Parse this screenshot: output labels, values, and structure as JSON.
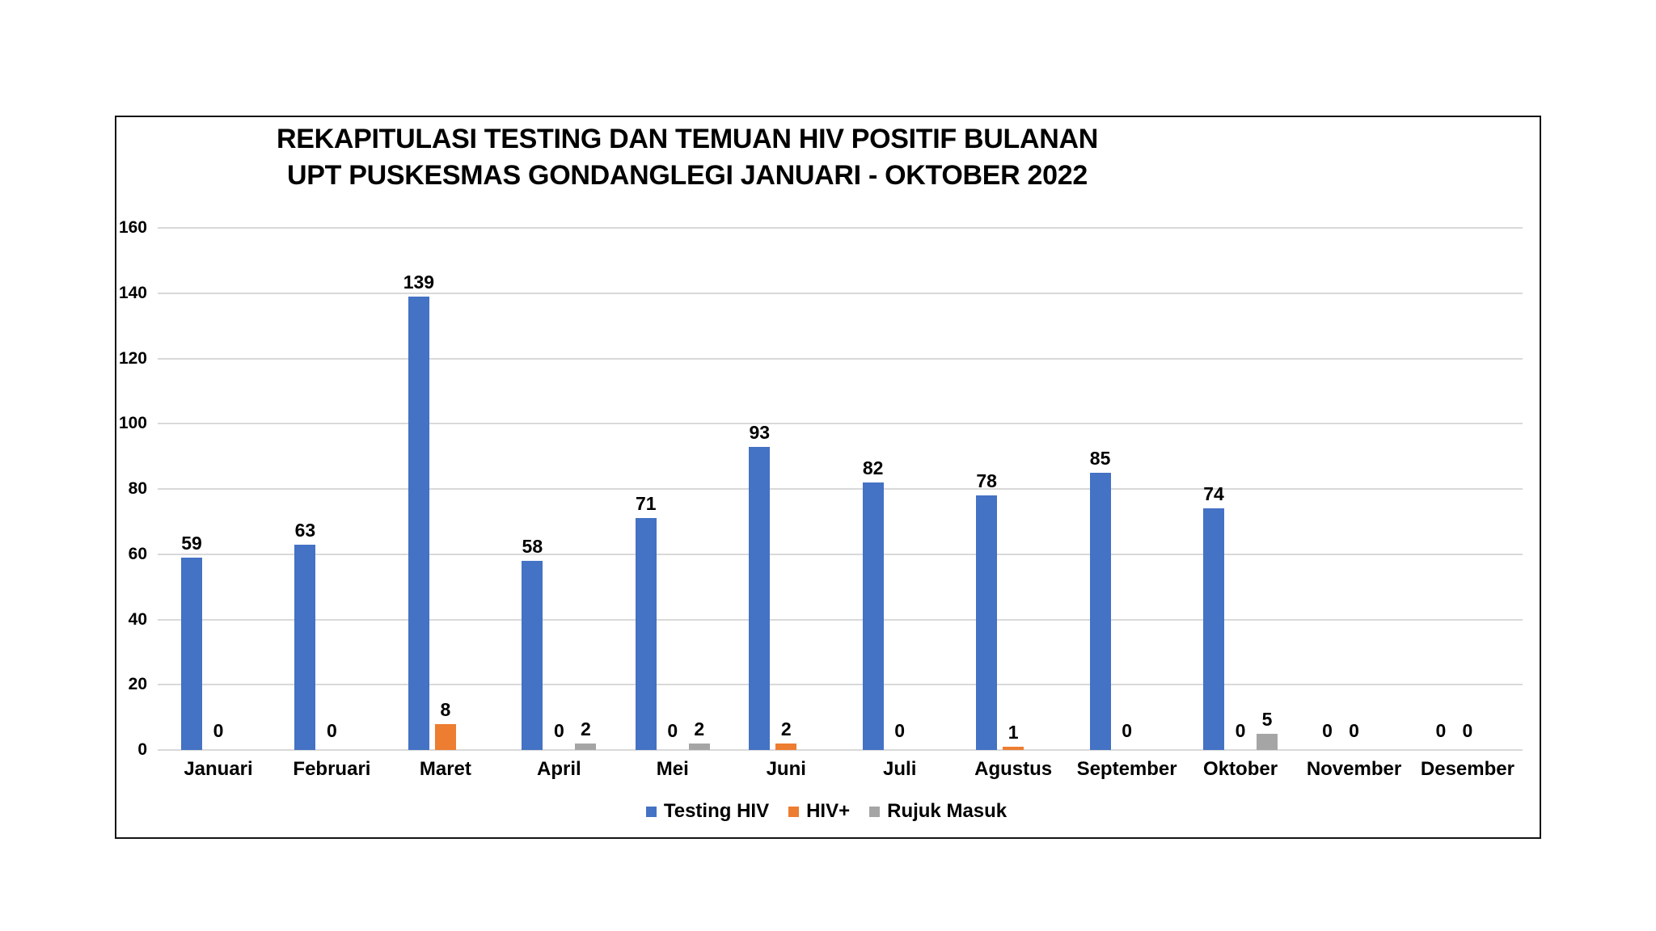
{
  "title": {
    "line1": "REKAPITULASI TESTING DAN TEMUAN HIV POSITIF BULANAN",
    "line2": "UPT PUSKESMAS GONDANGLEGI JANUARI - OKTOBER 2022"
  },
  "chart_data": {
    "type": "bar",
    "title": "REKAPITULASI TESTING DAN TEMUAN HIV POSITIF BULANAN UPT PUSKESMAS GONDANGLEGI JANUARI - OKTOBER 2022",
    "categories": [
      "Januari",
      "Februari",
      "Maret",
      "April",
      "Mei",
      "Juni",
      "Juli",
      "Agustus",
      "September",
      "Oktober",
      "November",
      "Desember"
    ],
    "series": [
      {
        "name": "Testing HIV",
        "color": "#4472C4",
        "values": [
          59,
          63,
          139,
          58,
          71,
          93,
          82,
          78,
          85,
          74,
          0,
          0
        ]
      },
      {
        "name": "HIV+",
        "color": "#ED7D31",
        "values": [
          0,
          0,
          8,
          0,
          0,
          2,
          0,
          1,
          0,
          0,
          0,
          0
        ]
      },
      {
        "name": "Rujuk Masuk",
        "color": "#A5A5A5",
        "values": [
          null,
          null,
          null,
          2,
          2,
          null,
          null,
          null,
          null,
          5,
          null,
          null
        ]
      }
    ],
    "xlabel": "",
    "ylabel": "",
    "ylim": [
      0,
      160
    ],
    "yticks": [
      0,
      20,
      40,
      60,
      80,
      100,
      120,
      140,
      160
    ],
    "grid": true,
    "gridline_color": "#D9D9D9",
    "frame_border_color": "#141414",
    "legend_position": "bottom",
    "data_labels": true
  }
}
